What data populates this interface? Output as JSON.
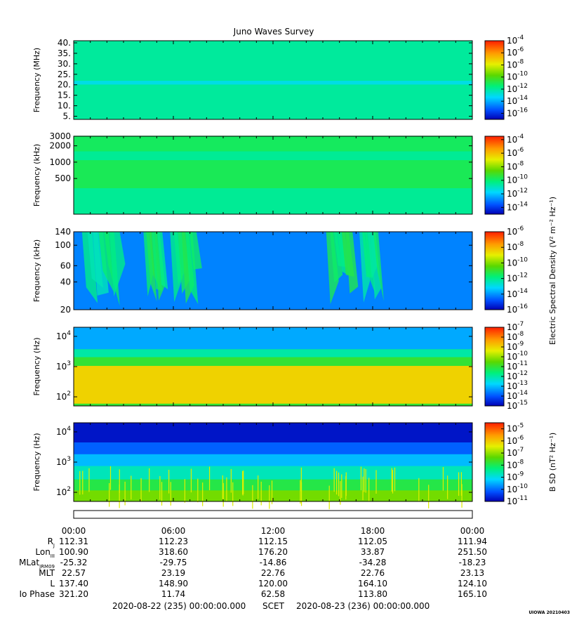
{
  "title": "Juno Waves Survey",
  "stamp": "UIOWA 20210403",
  "chart_data": [
    {
      "type": "heatmap",
      "name": "hfr-high",
      "ylabel": "Frequency (MHz)",
      "yscale": "linear",
      "ylim": [
        3.5,
        41
      ],
      "yticks": [
        {
          "v": 5,
          "label": "5."
        },
        {
          "v": 10,
          "label": "10."
        },
        {
          "v": 15,
          "label": "15."
        },
        {
          "v": 20,
          "label": "20."
        },
        {
          "v": 25,
          "label": "25."
        },
        {
          "v": 30,
          "label": "30."
        },
        {
          "v": 35,
          "label": "35."
        },
        {
          "v": 40,
          "label": "40."
        }
      ],
      "colorbar": {
        "label": "",
        "clim": [
          -17,
          -4
        ],
        "ticks": [
          -16,
          -14,
          -12,
          -10,
          -8,
          -6,
          -4
        ]
      },
      "background_level": -12,
      "features": [
        {
          "kind": "band",
          "center": 21,
          "width": 1.8,
          "level": -13
        }
      ]
    },
    {
      "type": "heatmap",
      "name": "hfr-low",
      "ylabel": "Frequency (kHz)",
      "yscale": "log",
      "ylim": [
        110,
        3000
      ],
      "yticks": [
        {
          "v": 500,
          "label": "500"
        },
        {
          "v": 1000,
          "label": "1000"
        },
        {
          "v": 2000,
          "label": "2000"
        },
        {
          "v": 3000,
          "label": "3000"
        }
      ],
      "colorbar": {
        "label": "",
        "clim": [
          -15,
          -3.5
        ],
        "ticks": [
          -14,
          -12,
          -10,
          -8,
          -6,
          -4
        ]
      },
      "background_level": -10.5,
      "features": [
        {
          "kind": "band",
          "center": 600,
          "width": 0.09,
          "level": -9.7
        },
        {
          "kind": "band",
          "center": 2200,
          "width": 0.05,
          "level": -9.8
        }
      ]
    },
    {
      "type": "heatmap",
      "name": "lfr-high",
      "ylabel": "Frequency (kHz)",
      "yscale": "log",
      "ylim": [
        20,
        140
      ],
      "yticks": [
        {
          "v": 20,
          "label": "20"
        },
        {
          "v": 40,
          "label": "40"
        },
        {
          "v": 60,
          "label": "60"
        },
        {
          "v": 100,
          "label": "100"
        },
        {
          "v": 140,
          "label": "140"
        }
      ],
      "colorbar": {
        "label": "Electric Spectral Density (V² m⁻² Hz⁻¹)",
        "clim": [
          -16,
          -6
        ],
        "ticks": [
          -16,
          -14,
          -12,
          -10,
          -8,
          -6
        ]
      },
      "background_level": -14.2,
      "features": [
        {
          "kind": "burst",
          "t": [
            0.5,
            2.5
          ],
          "level": -12.5
        },
        {
          "kind": "burst",
          "t": [
            4.2,
            5.2
          ],
          "level": -12
        },
        {
          "kind": "burst",
          "t": [
            5.8,
            7.2
          ],
          "level": -12
        },
        {
          "kind": "burst",
          "t": [
            15.2,
            16.6
          ],
          "level": -12
        },
        {
          "kind": "burst",
          "t": [
            17.2,
            18.2
          ],
          "level": -12.5
        }
      ]
    },
    {
      "type": "heatmap",
      "name": "lfr-low",
      "ylabel": "Frequency (Hz)",
      "yscale": "log",
      "ylim": [
        50,
        20000
      ],
      "yticks": [
        {
          "v": 100,
          "label": "10",
          "exp": "2"
        },
        {
          "v": 1000,
          "label": "10",
          "exp": "3"
        },
        {
          "v": 10000,
          "label": "10",
          "exp": "4"
        }
      ],
      "colorbar": {
        "label": "",
        "clim": [
          -15,
          -7
        ],
        "ticks": [
          -15,
          -14,
          -13,
          -12,
          -11,
          -10,
          -9,
          -8,
          -7
        ]
      },
      "background_level": -11,
      "features": [
        {
          "kind": "band",
          "center": 250,
          "width": 0.12,
          "level": -9
        }
      ]
    },
    {
      "type": "heatmap",
      "name": "magnetic",
      "ylabel": "Frequency (Hz)",
      "yscale": "log",
      "ylim": [
        50,
        20000
      ],
      "yticks": [
        {
          "v": 100,
          "label": "10",
          "exp": "2"
        },
        {
          "v": 1000,
          "label": "10",
          "exp": "3"
        },
        {
          "v": 10000,
          "label": "10",
          "exp": "4"
        }
      ],
      "colorbar": {
        "label": "B SD (nT² Hz⁻¹)",
        "clim": [
          -11,
          -4.5
        ],
        "ticks": [
          -11,
          -10,
          -9,
          -8,
          -7,
          -6,
          -5
        ]
      },
      "background_level": -9.5,
      "features": []
    }
  ],
  "time_axis": {
    "start_label": "2020-08-22 (235) 00:00:00.000",
    "scet_label": "SCET",
    "end_label": "2020-08-23 (236) 00:00:00.000",
    "hours": [
      0,
      6,
      12,
      18,
      24
    ],
    "tick_labels": [
      "00:00",
      "06:00",
      "12:00",
      "18:00",
      "00:00"
    ]
  },
  "ephemeris": [
    {
      "label": "R",
      "sub": "J",
      "values": [
        "112.31",
        "112.23",
        "112.15",
        "112.05",
        "111.94"
      ]
    },
    {
      "label": "Lon",
      "sub": "III",
      "values": [
        "100.90",
        "318.60",
        "176.20",
        "33.87",
        "251.50"
      ]
    },
    {
      "label": "MLat",
      "sub": "JRM09",
      "values": [
        "-25.32",
        "-29.75",
        "-14.86",
        "-34.28",
        "-18.23"
      ]
    },
    {
      "label": "MLT",
      "sub": "",
      "values": [
        "22.57",
        "23.19",
        "22.76",
        "22.76",
        "23.13"
      ]
    },
    {
      "label": "L",
      "sub": "",
      "values": [
        "137.40",
        "148.90",
        "120.00",
        "164.10",
        "124.10"
      ]
    },
    {
      "label": "Io Phase",
      "sub": "",
      "values": [
        "321.20",
        "11.74",
        "62.58",
        "113.80",
        "165.10"
      ]
    }
  ]
}
